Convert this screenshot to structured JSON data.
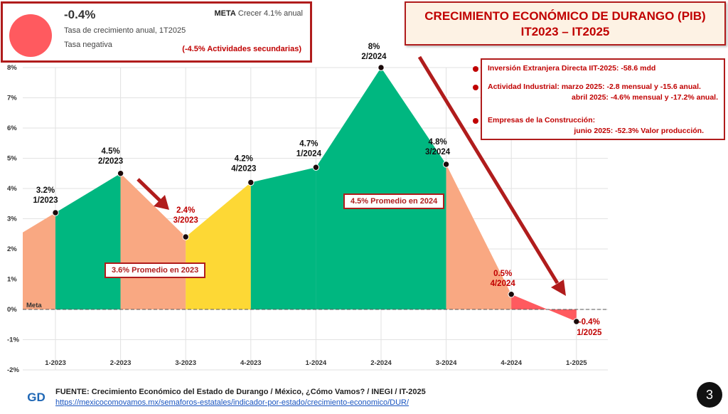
{
  "indicator": {
    "value": "-0.4%",
    "description": "Tasa de crecimiento anual, 1T2025",
    "status": "Tasa negativa",
    "meta_label": "META",
    "meta_text": "Crecer 4.1% anual",
    "note": "(-4.5% Actividades secundarias)",
    "dot_color": "#ff5a5f"
  },
  "title": {
    "line1": "CRECIMIENTO ECONÓMICO DE DURANGO (PIB)",
    "line2": "IT2023 – IT2025"
  },
  "info": {
    "items": [
      {
        "lines": [
          "Inversión Extranjera Directa IIT-2025: -58.6 mdd"
        ]
      },
      {
        "lines": [
          "Actividad Industrial:  marzo 2025: -2.8 mensual y -15.6 anual.",
          "abril 2025: -4.6% mensual y -17.2% anual."
        ]
      },
      {
        "lines": [
          "Empresas de la Construcción:",
          "junio 2025: -52.3% Valor producción."
        ]
      }
    ]
  },
  "annotations": {
    "avg_2023": "3.6% Promedio en 2023",
    "avg_2024": "4.5% Promedio en 2024"
  },
  "footer": {
    "source": "FUENTE: Crecimiento Económico del Estado de Durango / México, ¿Cómo Vamos? /  INEGI / IT-2025",
    "url": "https://mexicocomovamos.mx/semaforos-estatales/indicador-por-estado/crecimiento-economico/DUR/",
    "page": "3",
    "logo_text": "GD"
  },
  "chart_data": {
    "type": "area",
    "categories": [
      "1-2023",
      "2-2023",
      "3-2023",
      "4-2023",
      "1-2024",
      "2-2024",
      "3-2024",
      "4-2024",
      "1-2025"
    ],
    "values": [
      3.2,
      4.5,
      2.4,
      4.2,
      4.7,
      8.0,
      4.8,
      0.5,
      -0.4
    ],
    "point_labels": [
      {
        "value": "3.2%",
        "period": "1/2023",
        "color": "#111111"
      },
      {
        "value": "4.5%",
        "period": "2/2023",
        "color": "#111111"
      },
      {
        "value": "2.4%",
        "period": "3/2023",
        "color": "#c00000"
      },
      {
        "value": "4.2%",
        "period": "4/2023",
        "color": "#111111"
      },
      {
        "value": "4.7%",
        "period": "1/2024",
        "color": "#111111"
      },
      {
        "value": "8%",
        "period": "2/2024",
        "color": "#111111"
      },
      {
        "value": "4.8%",
        "period": "3/2024",
        "color": "#111111"
      },
      {
        "value": "0.5%",
        "period": "4/2024",
        "color": "#c00000"
      },
      {
        "value": "-0.4%",
        "period": "1/2025",
        "color": "#c00000"
      }
    ],
    "segment_colors": [
      "#f9a882",
      "#00b780",
      "#f9a882",
      "#fdd835",
      "#00b780",
      "#00b780",
      "#00b780",
      "#f9a882",
      "#ff5a5f"
    ],
    "ylim": [
      -2,
      8
    ],
    "yticks": [
      -2,
      -1,
      0,
      1,
      2,
      3,
      4,
      5,
      6,
      7,
      8
    ],
    "ytick_labels": [
      "-2%",
      "-1%",
      "0%",
      "1%",
      "2%",
      "3%",
      "4%",
      "5%",
      "6%",
      "7%",
      "8%"
    ],
    "meta_line_label": "Meta",
    "grid": true
  }
}
